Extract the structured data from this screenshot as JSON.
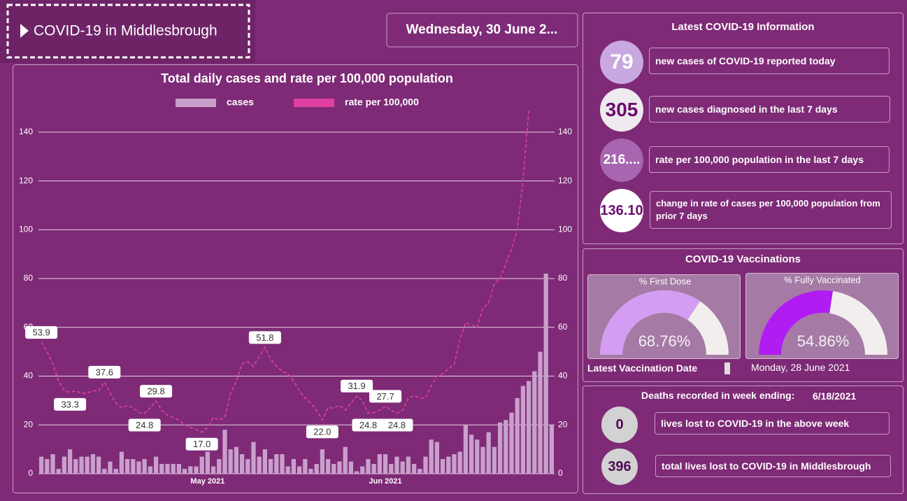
{
  "header": {
    "title": "COVID-19 in Middlesbrough",
    "date": "Wednesday, 30 June 2..."
  },
  "chart_data": [
    {
      "type": "combo",
      "title": "Total daily cases and rate per 100,000 population",
      "categories": [
        null,
        null,
        null,
        null,
        null,
        null,
        null,
        null,
        null,
        null,
        null,
        null,
        null,
        null,
        null,
        null,
        null,
        null,
        null,
        null,
        null,
        null,
        null,
        null,
        null,
        null,
        null,
        null,
        null,
        "May 2021",
        null,
        null,
        null,
        null,
        null,
        null,
        null,
        null,
        null,
        null,
        null,
        null,
        null,
        null,
        null,
        null,
        null,
        null,
        null,
        null,
        null,
        null,
        null,
        null,
        null,
        null,
        null,
        null,
        null,
        null,
        "Jun 2021",
        null,
        null,
        null,
        null,
        null,
        null,
        null,
        null,
        null,
        null,
        null,
        null,
        null,
        null,
        null,
        null,
        null,
        null,
        null,
        null,
        null,
        null,
        null,
        null,
        null,
        null,
        null,
        null,
        null
      ],
      "series": [
        {
          "name": "cases",
          "type": "bar",
          "color": "#c9a0cc",
          "values": [
            7,
            6,
            8,
            2,
            7,
            10,
            6,
            7,
            7,
            8,
            7,
            2,
            5,
            2,
            9,
            6,
            6,
            5,
            6,
            3,
            7,
            4,
            4,
            4,
            4,
            2,
            3,
            3,
            7,
            9,
            3,
            6,
            18,
            10,
            11,
            8,
            6,
            13,
            7,
            10,
            6,
            8,
            8,
            3,
            6,
            3,
            6,
            2,
            4,
            10,
            6,
            4,
            5,
            11,
            5,
            1,
            3,
            6,
            4,
            8,
            8,
            4,
            7,
            5,
            7,
            4,
            2,
            7,
            14,
            13,
            6,
            7,
            8,
            9,
            20,
            16,
            14,
            11,
            17,
            11,
            21,
            22,
            25,
            31,
            36,
            38,
            42,
            50,
            82,
            20
          ]
        },
        {
          "name": "rate per 100,000",
          "type": "line",
          "axis": "y2",
          "dashed": true,
          "color": "#e040a0",
          "values": [
            53.9,
            50,
            45,
            38,
            34,
            33.3,
            34,
            33,
            33,
            34,
            34,
            37.6,
            33,
            29,
            27,
            28,
            27,
            25,
            24.8,
            27,
            29.8,
            26,
            24,
            23,
            22,
            20,
            19,
            18,
            17,
            19,
            23,
            22,
            23,
            33,
            38,
            45,
            46,
            44,
            48,
            51.8,
            47,
            44,
            42,
            41,
            38,
            34,
            31,
            29,
            26,
            22,
            27,
            27,
            28,
            26,
            29,
            31.9,
            30,
            24.8,
            25,
            26,
            27.7,
            26,
            24.8,
            26,
            31,
            32,
            31,
            31,
            36,
            40,
            41,
            43,
            45,
            55,
            62,
            61,
            60,
            68,
            70,
            78,
            80,
            86,
            92,
            100,
            120,
            149,
            null,
            null,
            null,
            null
          ],
          "value_labels": [
            "53.9",
            null,
            null,
            null,
            null,
            "33.3",
            null,
            null,
            null,
            null,
            null,
            "37.6",
            null,
            null,
            null,
            null,
            null,
            null,
            "24.8",
            null,
            "29.8",
            null,
            null,
            null,
            null,
            null,
            null,
            null,
            "17.0",
            null,
            null,
            null,
            null,
            null,
            null,
            null,
            null,
            null,
            null,
            "51.8",
            null,
            null,
            null,
            null,
            null,
            null,
            null,
            null,
            null,
            "22.0",
            null,
            null,
            null,
            null,
            null,
            "31.9",
            null,
            "24.8",
            null,
            null,
            "27.7",
            null,
            "24.8",
            null,
            null,
            null,
            null,
            null,
            null,
            null,
            null,
            null,
            null,
            null,
            null,
            null,
            null,
            null,
            null,
            null,
            null,
            null,
            null,
            null,
            null,
            null,
            null,
            null,
            null,
            null
          ]
        }
      ],
      "ylim": [
        0,
        150
      ],
      "yticks": [
        0,
        20,
        40,
        60,
        80,
        100,
        120,
        140
      ],
      "y2lim": [
        0,
        150
      ],
      "y2ticks": [
        0,
        20,
        40,
        60,
        80,
        100,
        120,
        140
      ],
      "grid": true
    },
    {
      "type": "gauge",
      "title": "% First Dose",
      "value": 68.76,
      "value_label": "68.76%",
      "ylim": [
        0,
        100
      ],
      "color": "#d49cf2",
      "track_color": "#f2eeee"
    },
    {
      "type": "gauge",
      "title": "% Fully Vaccinated",
      "value": 54.86,
      "value_label": "54.86%",
      "ylim": [
        0,
        100
      ],
      "color": "#b01cf2",
      "track_color": "#f2eeee"
    }
  ],
  "latest": {
    "title": "Latest COVID-19 Information",
    "items": [
      {
        "value": "79",
        "label": "new cases of COVID-19 reported today"
      },
      {
        "value": "305",
        "label": "new cases diagnosed in the last 7 days"
      },
      {
        "value": "216....",
        "label": "rate per 100,000 population in the last 7 days"
      },
      {
        "value": "136.10",
        "label": "change in rate of cases per 100,000  population from prior 7 days"
      }
    ]
  },
  "vaccinations": {
    "title": "COVID-19 Vaccinations",
    "date_label": "Latest Vaccination Date",
    "date": "Monday, 28 June 2021"
  },
  "deaths": {
    "title": "Deaths recorded in week ending:",
    "date": "6/18/2021",
    "items": [
      {
        "value": "0",
        "label": "lives lost to COVID-19 in the above week"
      },
      {
        "value": "396",
        "label": "total lives lost to COVID-19 in Middlesbrough"
      }
    ]
  }
}
